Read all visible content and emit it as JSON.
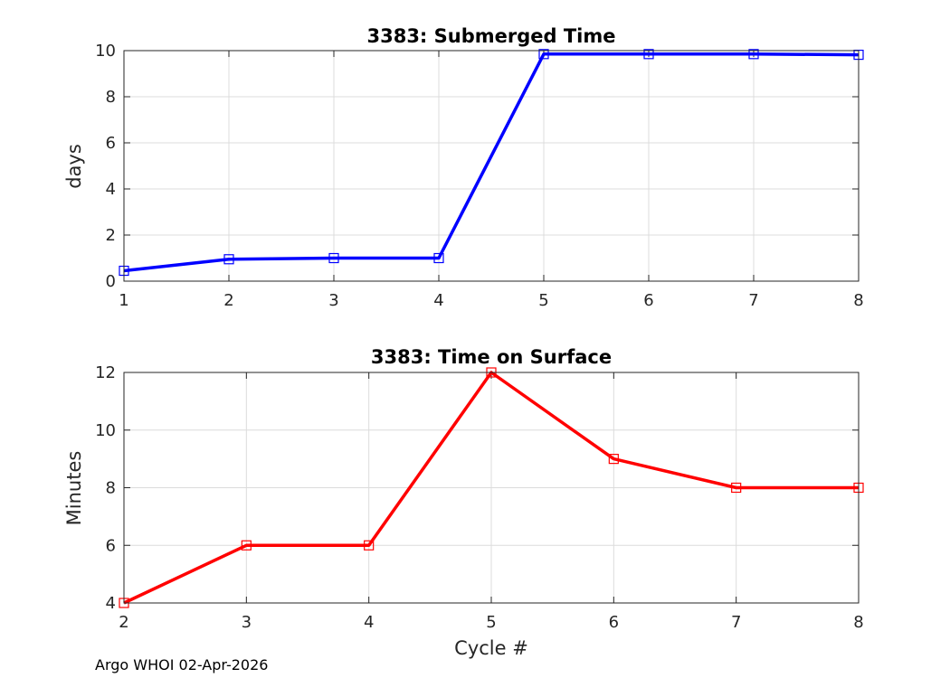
{
  "chart_data": [
    {
      "type": "line",
      "title": "3383: Submerged Time",
      "xlabel": "",
      "ylabel": "days",
      "xlim": [
        1,
        8
      ],
      "ylim": [
        0,
        10
      ],
      "xticks": [
        1,
        2,
        3,
        4,
        5,
        6,
        7,
        8
      ],
      "yticks": [
        0,
        2,
        4,
        6,
        8,
        10
      ],
      "grid": true,
      "marker": "square",
      "series": [
        {
          "name": "Submerged Time",
          "color": "#0000ff",
          "x": [
            1,
            2,
            3,
            4,
            5,
            6,
            7,
            8
          ],
          "y": [
            0.45,
            0.95,
            1.0,
            1.0,
            9.85,
            9.85,
            9.85,
            9.82
          ]
        }
      ]
    },
    {
      "type": "line",
      "title": "3383: Time on Surface",
      "xlabel": "Cycle #",
      "ylabel": "Minutes",
      "xlim": [
        2,
        8
      ],
      "ylim": [
        4,
        12
      ],
      "xticks": [
        2,
        3,
        4,
        5,
        6,
        7,
        8
      ],
      "yticks": [
        4,
        6,
        8,
        10,
        12
      ],
      "grid": true,
      "marker": "square",
      "series": [
        {
          "name": "Time on Surface",
          "color": "#ff0000",
          "x": [
            2,
            3,
            4,
            5,
            6,
            7,
            8
          ],
          "y": [
            4,
            6,
            6,
            12,
            9,
            8,
            8
          ]
        }
      ]
    }
  ],
  "footer": "Argo WHOI 02-Apr-2026"
}
